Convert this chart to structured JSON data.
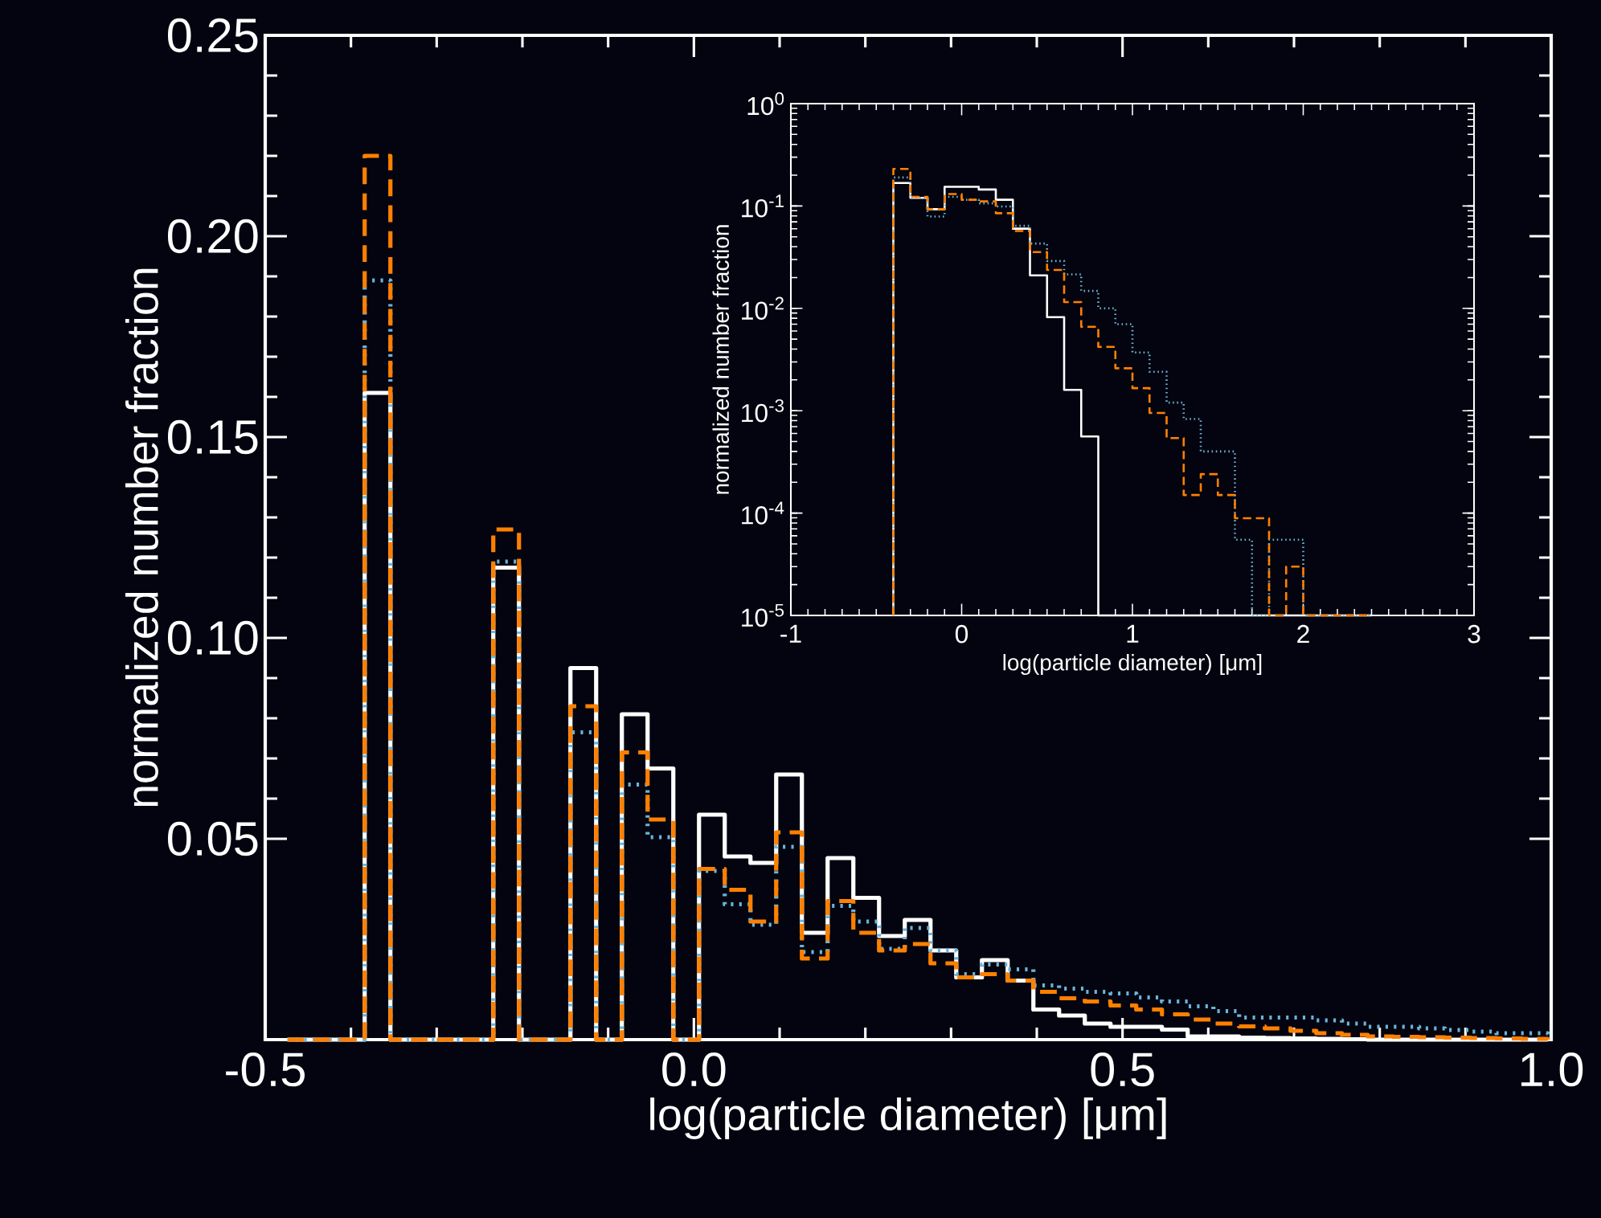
{
  "chart_data": [
    {
      "type": "histogram",
      "xlabel": "log(particle diameter) [μm]",
      "ylabel": "normalized number fraction",
      "bins": [
        -0.474,
        -0.444,
        -0.414,
        -0.384,
        -0.354,
        -0.324,
        -0.294,
        -0.264,
        -0.234,
        -0.204,
        -0.174,
        -0.144,
        -0.114,
        -0.084,
        -0.054,
        -0.024,
        0.006,
        0.036,
        0.066,
        0.096,
        0.126,
        0.156,
        0.186,
        0.216,
        0.246,
        0.276,
        0.306,
        0.336,
        0.366,
        0.396,
        0.426,
        0.456,
        0.486,
        0.516,
        0.546,
        0.576,
        0.606,
        0.636,
        0.666,
        0.696,
        0.726,
        0.756,
        0.786,
        0.816,
        0.846,
        0.876,
        0.906,
        0.936,
        0.966,
        0.996
      ],
      "series": [
        {
          "color": "#ffffff",
          "line_style": "solid",
          "values": [
            0,
            0,
            0,
            0.161,
            0,
            0,
            0,
            0,
            0.1175,
            0,
            0,
            0.0925,
            0,
            0.081,
            0.0675,
            0,
            0.056,
            0.0456,
            0.044,
            0.066,
            0.0266,
            0.0452,
            0.0353,
            0.0258,
            0.0298,
            0.0222,
            0.0155,
            0.0198,
            0.0147,
            0.0075,
            0.006,
            0.004,
            0.0032,
            0.0032,
            0.0025,
            0.0008,
            0.0008,
            0.0005,
            0.0004,
            0.0003,
            0.0002,
            0.0001,
            0,
            0,
            0,
            0,
            0,
            0,
            0
          ]
        },
        {
          "color": "#6ab4d8",
          "line_style": "dotted",
          "values": [
            0,
            0,
            0,
            0.189,
            0,
            0,
            0,
            0,
            0.119,
            0,
            0,
            0.0765,
            0,
            0.0635,
            0.0504,
            0,
            0.042,
            0.0337,
            0.0286,
            0.048,
            0.0218,
            0.0333,
            0.0294,
            0.0226,
            0.0278,
            0.0222,
            0.0163,
            0.0187,
            0.0175,
            0.0135,
            0.0127,
            0.0119,
            0.0115,
            0.0105,
            0.0095,
            0.0083,
            0.0071,
            0.0055,
            0.0055,
            0.0055,
            0.0048,
            0.004,
            0.0032,
            0.0032,
            0.0028,
            0.0024,
            0.002,
            0.0016,
            0.0016
          ]
        },
        {
          "color": "#ff8000",
          "line_style": "dashed",
          "values": [
            0,
            0,
            0,
            0.22,
            0,
            0,
            0,
            0,
            0.127,
            0,
            0,
            0.083,
            0,
            0.0715,
            0.0548,
            0,
            0.0425,
            0.0373,
            0.0294,
            0.0516,
            0.0202,
            0.0345,
            0.0266,
            0.0222,
            0.0238,
            0.019,
            0.0155,
            0.0163,
            0.0147,
            0.0119,
            0.0103,
            0.0095,
            0.0085,
            0.0075,
            0.0063,
            0.005,
            0.004,
            0.0033,
            0.0028,
            0.0022,
            0.0016,
            0.0012,
            0.0008,
            0.0007,
            0.0006,
            0.0005,
            0.0004,
            0.0003,
            0.0002
          ]
        }
      ],
      "xlim": [
        -0.5,
        1.0
      ],
      "ylim": [
        0,
        0.25
      ],
      "xticks": [
        -0.5,
        {
          "value": 0,
          "label": "0.0"
        },
        0.5,
        {
          "value": 1,
          "label": "1.0"
        }
      ],
      "yticks": [
        0.05,
        {
          "value": 0.1,
          "label": "0.10"
        },
        0.15,
        {
          "value": 0.2,
          "label": "0.20"
        },
        0.25
      ]
    },
    {
      "type": "histogram",
      "xlabel": "log(particle diameter) [μm]",
      "ylabel": "normalized number fraction",
      "log": "y",
      "bins": [
        -0.4,
        -0.3,
        -0.2,
        -0.1,
        0,
        0.1,
        0.2,
        0.3,
        0.4,
        0.5,
        0.6,
        0.7,
        0.8,
        0.9,
        1.0,
        1.1,
        1.2,
        1.3,
        1.4,
        1.5,
        1.6,
        1.7,
        1.8,
        1.9,
        2.0,
        2.1,
        2.2,
        2.3,
        2.4
      ],
      "series": [
        {
          "color": "#ffffff",
          "line_style": "solid",
          "values": [
            0.168,
            0.12,
            0.093,
            0.154,
            0.154,
            0.145,
            0.115,
            0.06,
            0.021,
            0.0082,
            0.0016,
            0.00056,
            null,
            null,
            null,
            null,
            null,
            null,
            null,
            null,
            null,
            null,
            null,
            null,
            null,
            null,
            null,
            null
          ]
        },
        {
          "color": "#6ab4d8",
          "line_style": "dotted",
          "values": [
            0.19,
            0.12,
            0.079,
            0.123,
            0.115,
            0.106,
            0.099,
            0.064,
            0.043,
            0.029,
            0.0215,
            0.0148,
            0.01,
            0.007,
            0.0037,
            0.0024,
            0.0012,
            0.00083,
            0.0004,
            0.0004,
            5.5e-05,
            null,
            5.5e-05,
            5.5e-05,
            null,
            null,
            null,
            null
          ]
        },
        {
          "color": "#ff8000",
          "line_style": "dashed",
          "values": [
            0.23,
            0.123,
            0.093,
            0.131,
            0.115,
            0.111,
            0.085,
            0.057,
            0.0355,
            0.0237,
            0.0115,
            0.0066,
            0.0042,
            0.0026,
            0.00166,
            0.00095,
            0.00054,
            0.00015,
            0.00024,
            0.00015,
            8.9e-05,
            8.9e-05,
            null,
            3e-05,
            null,
            null,
            null,
            null
          ]
        }
      ],
      "xlim": [
        -1,
        3
      ],
      "ylim": [
        1e-05,
        1
      ],
      "xticks": [
        -1,
        0,
        1,
        2,
        3
      ],
      "yticks": [
        {
          "value": 1e-05,
          "label": "10$^{-5}$"
        },
        {
          "value": 0.0001,
          "label": "10$^{-4}$"
        },
        {
          "value": 0.001,
          "label": "10$^{-3}$"
        },
        {
          "value": 0.01,
          "label": "10$^{-2}$"
        },
        {
          "value": 0.1,
          "label": "10$^{-1}$"
        },
        {
          "value": 1,
          "label": "10$^{0}$"
        }
      ]
    }
  ]
}
